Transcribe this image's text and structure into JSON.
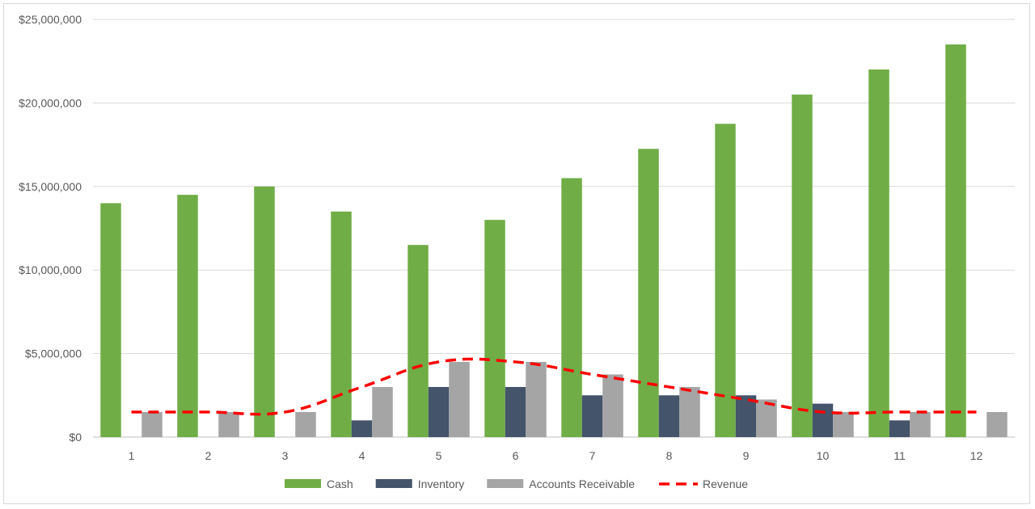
{
  "chart_data": {
    "type": "bar",
    "title": "",
    "xlabel": "",
    "ylabel": "",
    "categories": [
      "1",
      "2",
      "3",
      "4",
      "5",
      "6",
      "7",
      "8",
      "9",
      "10",
      "11",
      "12"
    ],
    "ylim": [
      0,
      25000000
    ],
    "yticks": [
      0,
      5000000,
      10000000,
      15000000,
      20000000,
      25000000
    ],
    "ytick_labels": [
      "$0",
      "$5,000,000",
      "$10,000,000",
      "$15,000,000",
      "$20,000,000",
      "$25,000,000"
    ],
    "grid": true,
    "legend_position": "bottom",
    "series": [
      {
        "name": "Cash",
        "kind": "bar",
        "color": "#70ad47",
        "values": [
          14000000,
          14500000,
          15000000,
          13500000,
          11500000,
          13000000,
          15500000,
          17250000,
          18750000,
          20500000,
          22000000,
          23500000
        ]
      },
      {
        "name": "Inventory",
        "kind": "bar",
        "color": "#44546a",
        "values": [
          0,
          0,
          0,
          1000000,
          3000000,
          3000000,
          2500000,
          2500000,
          2500000,
          2000000,
          1000000,
          0
        ]
      },
      {
        "name": "Accounts Receivable",
        "kind": "bar",
        "color": "#a5a5a5",
        "values": [
          1500000,
          1500000,
          1500000,
          3000000,
          4500000,
          4500000,
          3750000,
          3000000,
          2250000,
          1500000,
          1500000,
          1500000
        ]
      },
      {
        "name": "Revenue",
        "kind": "line",
        "style": "dashed",
        "color": "#ff0000",
        "values": [
          1500000,
          1500000,
          1500000,
          3000000,
          4500000,
          4500000,
          3750000,
          3000000,
          2250000,
          1500000,
          1500000,
          1500000
        ]
      }
    ]
  }
}
